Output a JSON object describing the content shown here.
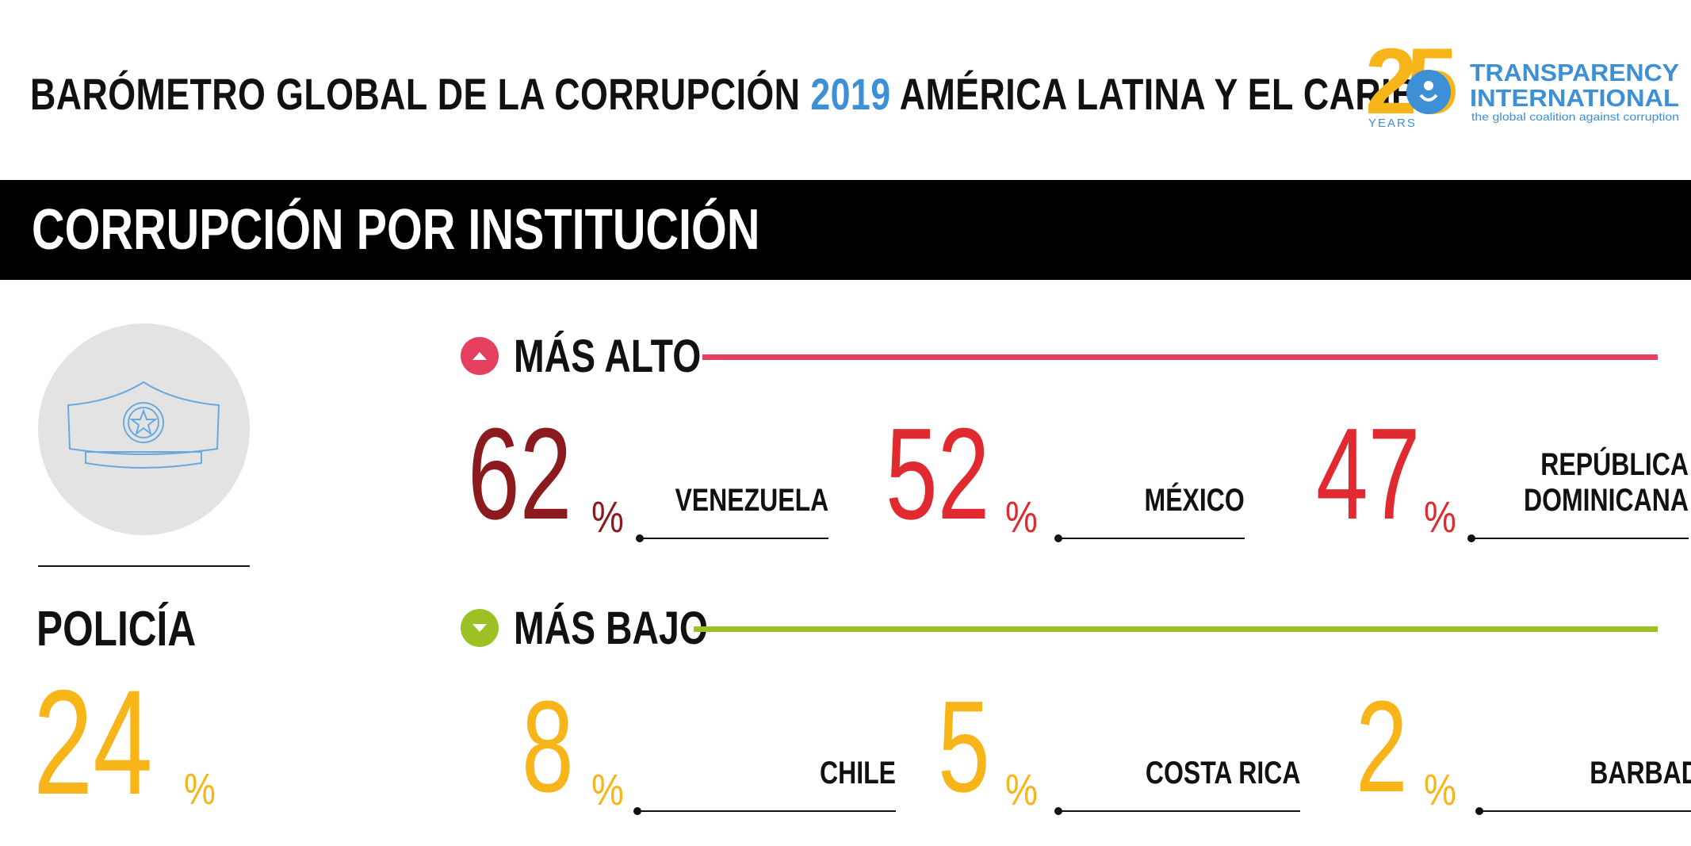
{
  "header": {
    "title_part1": "BARÓMETRO GLOBAL DE LA CORRUPCIÓN ",
    "year": "2019",
    "title_part2": " AMÉRICA LATINA Y EL CARIBE"
  },
  "logo": {
    "anniversary": "25",
    "years": "YEARS",
    "org_line1": "TRANSPARENCY",
    "org_line2": "INTERNATIONAL",
    "tagline": "the global coalition against corruption"
  },
  "section": {
    "title": "CORRUPCIÓN POR INSTITUCIÓN"
  },
  "institution": {
    "name": "POLICÍA",
    "value": "24",
    "unit": "%",
    "icon": "police-cap-icon"
  },
  "highest": {
    "title": "MÁS ALTO",
    "color": "#e5415e",
    "items": [
      {
        "value": "62",
        "unit": "%",
        "country": "VENEZUELA",
        "color": "#8b1a1f"
      },
      {
        "value": "52",
        "unit": "%",
        "country": "MÉXICO",
        "color": "#e02a2f"
      },
      {
        "value": "47",
        "unit": "%",
        "country": "REPÚBLICA\nDOMINICANA",
        "color": "#e02a2f"
      }
    ]
  },
  "lowest": {
    "title": "MÁS BAJO",
    "color": "#9dc125",
    "items": [
      {
        "value": "8",
        "unit": "%",
        "country": "CHILE",
        "color": "#f7b519"
      },
      {
        "value": "5",
        "unit": "%",
        "country": "COSTA RICA",
        "color": "#f7b519"
      },
      {
        "value": "2",
        "unit": "%",
        "country": "BARBADOS",
        "color": "#f7b519"
      }
    ]
  }
}
